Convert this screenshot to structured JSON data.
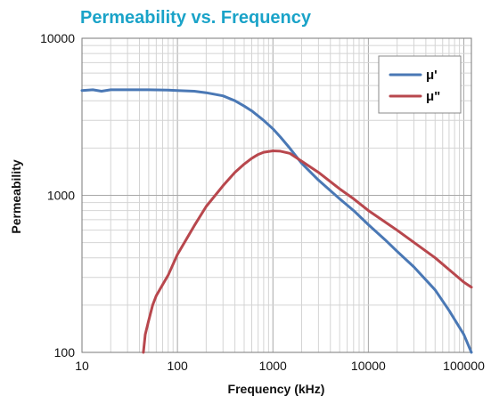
{
  "chart_data": {
    "type": "line",
    "title": "Permeability vs. Frequency",
    "xlabel": "Frequency (kHz)",
    "ylabel": "Permeability",
    "x_scale": "log",
    "y_scale": "log",
    "xlim": [
      10,
      120000
    ],
    "ylim": [
      100,
      10000
    ],
    "x_ticks": [
      10,
      100,
      1000,
      10000,
      100000
    ],
    "x_tick_labels": [
      "10",
      "100",
      "1000",
      "10000",
      "100000"
    ],
    "y_ticks": [
      100,
      1000,
      10000
    ],
    "y_tick_labels": [
      "100",
      "1000",
      "10000"
    ],
    "grid": true,
    "legend_position": "top-right",
    "title_color": "#1aa3c8",
    "series": [
      {
        "name": "μ'",
        "color": "#4a78b5",
        "points": [
          [
            10,
            4650
          ],
          [
            13,
            4700
          ],
          [
            16,
            4600
          ],
          [
            20,
            4700
          ],
          [
            30,
            4700
          ],
          [
            50,
            4700
          ],
          [
            80,
            4680
          ],
          [
            100,
            4650
          ],
          [
            150,
            4600
          ],
          [
            200,
            4500
          ],
          [
            300,
            4300
          ],
          [
            400,
            4000
          ],
          [
            500,
            3700
          ],
          [
            600,
            3450
          ],
          [
            700,
            3200
          ],
          [
            800,
            3000
          ],
          [
            1000,
            2650
          ],
          [
            1200,
            2350
          ],
          [
            1500,
            2000
          ],
          [
            2000,
            1600
          ],
          [
            3000,
            1250
          ],
          [
            5000,
            950
          ],
          [
            7000,
            800
          ],
          [
            10000,
            650
          ],
          [
            15000,
            520
          ],
          [
            20000,
            440
          ],
          [
            30000,
            350
          ],
          [
            50000,
            250
          ],
          [
            70000,
            185
          ],
          [
            100000,
            130
          ],
          [
            120000,
            100
          ]
        ]
      },
      {
        "name": "μ\"",
        "color": "#b8474d",
        "points": [
          [
            44,
            100
          ],
          [
            46,
            130
          ],
          [
            50,
            160
          ],
          [
            55,
            200
          ],
          [
            60,
            230
          ],
          [
            70,
            270
          ],
          [
            80,
            310
          ],
          [
            100,
            420
          ],
          [
            150,
            640
          ],
          [
            200,
            850
          ],
          [
            300,
            1150
          ],
          [
            400,
            1400
          ],
          [
            500,
            1580
          ],
          [
            600,
            1720
          ],
          [
            700,
            1820
          ],
          [
            800,
            1880
          ],
          [
            1000,
            1920
          ],
          [
            1200,
            1910
          ],
          [
            1500,
            1850
          ],
          [
            2000,
            1650
          ],
          [
            3000,
            1400
          ],
          [
            5000,
            1100
          ],
          [
            7000,
            950
          ],
          [
            10000,
            800
          ],
          [
            20000,
            600
          ],
          [
            50000,
            400
          ],
          [
            100000,
            280
          ],
          [
            120000,
            260
          ]
        ]
      }
    ]
  }
}
